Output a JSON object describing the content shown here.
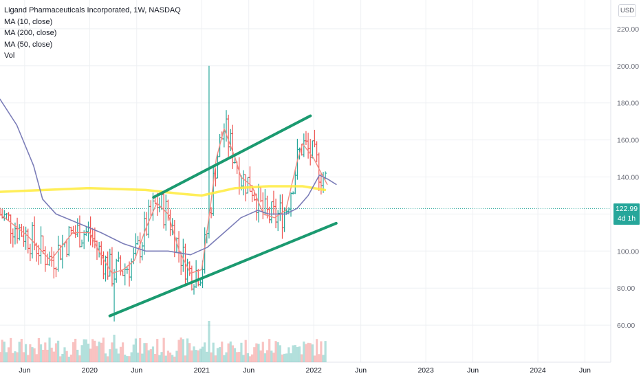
{
  "legend": {
    "title": "Ligand Pharmaceuticals Incorporated, 1W, NASDAQ",
    "ma10": "MA (10, close)",
    "ma200": "MA (200, close)",
    "ma50": "MA (50, close)",
    "vol": "Vol"
  },
  "currency": "USD",
  "price_label": {
    "price": "122.99",
    "countdown": "4d 1h"
  },
  "colors": {
    "up": "#26a69a",
    "down": "#ef5350",
    "ma10": "#f28b82",
    "ma200": "#ffeb3b",
    "ma50": "#7b7db8",
    "trendline": "#1b9a70",
    "grid": "#eef0f3"
  },
  "chart_data": {
    "type": "ohlc",
    "symbol": "LGND",
    "interval": "1W",
    "ylim": [
      40,
      228
    ],
    "y_ticks": [
      "60.00",
      "80.00",
      "100.00",
      "120.00",
      "140.00",
      "160.00",
      "180.00",
      "200.00",
      "220.00"
    ],
    "x_ticks": [
      "Jun",
      "2020",
      "Jun",
      "2021",
      "Jun",
      "2022",
      "Jun",
      "2023",
      "Jun",
      "2024",
      "Jun"
    ],
    "x_tick_months": [
      2019.42,
      2020.0,
      2020.42,
      2021.0,
      2021.42,
      2022.0,
      2022.42,
      2023.0,
      2023.42,
      2024.0,
      2024.42
    ],
    "series": [
      {
        "name": "MA (10, close)",
        "x": [
          2019.2,
          2019.45,
          2019.65,
          2019.85,
          2020.0,
          2020.1,
          2020.2,
          2020.3,
          2020.4,
          2020.5,
          2020.6,
          2020.7,
          2020.8,
          2020.9,
          2021.0,
          2021.08,
          2021.13,
          2021.2,
          2021.3,
          2021.35,
          2021.45,
          2021.55,
          2021.65,
          2021.75,
          2021.85,
          2021.9,
          2022.0,
          2022.05,
          2022.12
        ],
        "values": [
          120,
          108,
          95,
          110,
          110,
          98,
          88,
          90,
          95,
          112,
          126,
          120,
          100,
          88,
          90,
          125,
          150,
          166,
          150,
          140,
          135,
          120,
          118,
          122,
          148,
          158,
          150,
          144,
          136
        ]
      },
      {
        "name": "MA (200, close)",
        "x": [
          2019.2,
          2019.6,
          2020.0,
          2020.5,
          2020.8,
          2021.0,
          2021.3,
          2021.6,
          2021.9,
          2022.1
        ],
        "values": [
          132,
          133,
          134,
          133,
          131,
          130,
          134,
          135,
          135,
          133
        ]
      },
      {
        "name": "MA (50, close)",
        "x": [
          2019.2,
          2019.35,
          2019.5,
          2019.58,
          2019.7,
          2019.9,
          2020.1,
          2020.3,
          2020.5,
          2020.7,
          2020.9,
          2021.05,
          2021.2,
          2021.35,
          2021.5,
          2021.6,
          2021.75,
          2021.85,
          2021.95,
          2022.05,
          2022.12,
          2022.2
        ],
        "values": [
          182,
          168,
          146,
          128,
          120,
          115,
          110,
          104,
          100,
          100,
          98,
          102,
          110,
          118,
          122,
          120,
          120,
          123,
          130,
          141,
          139,
          136
        ]
      }
    ],
    "trendlines": [
      {
        "from": [
          2020.18,
          65
        ],
        "to": [
          2022.2,
          115
        ]
      },
      {
        "from": [
          2020.57,
          129
        ],
        "to": [
          2021.97,
          173
        ]
      }
    ],
    "current_price": 122.99
  }
}
